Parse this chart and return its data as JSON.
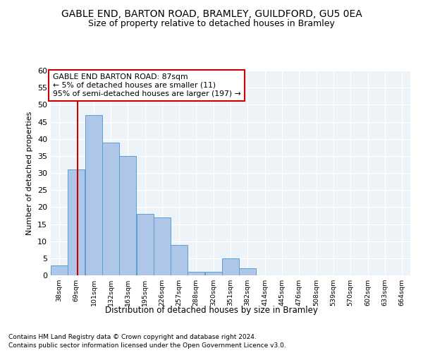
{
  "title1": "GABLE END, BARTON ROAD, BRAMLEY, GUILDFORD, GU5 0EA",
  "title2": "Size of property relative to detached houses in Bramley",
  "xlabel": "Distribution of detached houses by size in Bramley",
  "ylabel": "Number of detached properties",
  "bin_labels": [
    "38sqm",
    "69sqm",
    "101sqm",
    "132sqm",
    "163sqm",
    "195sqm",
    "226sqm",
    "257sqm",
    "288sqm",
    "320sqm",
    "351sqm",
    "382sqm",
    "414sqm",
    "445sqm",
    "476sqm",
    "508sqm",
    "539sqm",
    "570sqm",
    "602sqm",
    "633sqm",
    "664sqm"
  ],
  "bin_edges": [
    38,
    69,
    101,
    132,
    163,
    195,
    226,
    257,
    288,
    320,
    351,
    382,
    414,
    445,
    476,
    508,
    539,
    570,
    602,
    633,
    664
  ],
  "bar_heights": [
    3,
    31,
    47,
    39,
    35,
    18,
    17,
    9,
    1,
    1,
    5,
    2,
    0,
    0,
    0,
    0,
    0,
    0,
    0,
    0
  ],
  "bar_color": "#aec6e8",
  "bar_edge_color": "#5a9fd4",
  "ylim": [
    0,
    60
  ],
  "yticks": [
    0,
    5,
    10,
    15,
    20,
    25,
    30,
    35,
    40,
    45,
    50,
    55,
    60
  ],
  "vline_x": 87,
  "vline_color": "#cc0000",
  "annotation_box_text": "GABLE END BARTON ROAD: 87sqm\n← 5% of detached houses are smaller (11)\n95% of semi-detached houses are larger (197) →",
  "annotation_box_color": "#cc0000",
  "footnote1": "Contains HM Land Registry data © Crown copyright and database right 2024.",
  "footnote2": "Contains public sector information licensed under the Open Government Licence v3.0.",
  "bg_color": "#eef3f8",
  "grid_color": "#ffffff",
  "title1_fontsize": 10,
  "title2_fontsize": 9
}
